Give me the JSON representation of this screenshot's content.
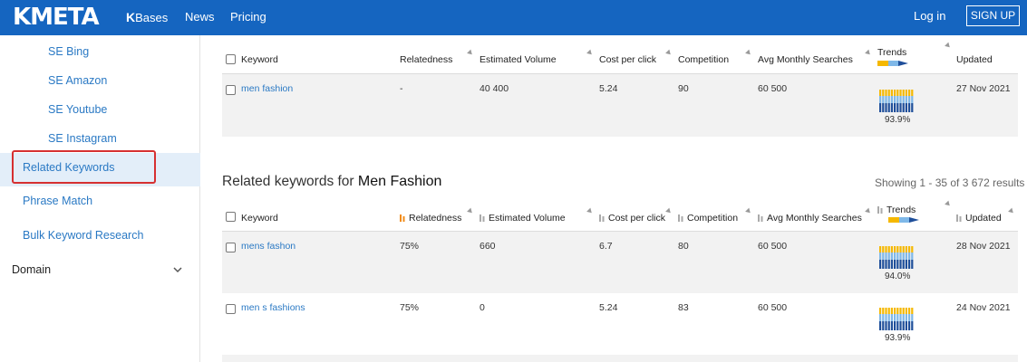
{
  "nav": {
    "logo_text": "KMETA",
    "kbases_k": "K",
    "kbases_label": "Bases",
    "news": "News",
    "pricing": "Pricing",
    "login": "Log in",
    "signup": "SIGN UP",
    "brand_color": "#1565c0"
  },
  "sidebar": {
    "items": [
      {
        "label": "SE Bing"
      },
      {
        "label": "SE Amazon"
      },
      {
        "label": "SE Youtube"
      },
      {
        "label": "SE Instagram"
      },
      {
        "label": "Related Keywords",
        "active": true
      },
      {
        "label": "Phrase Match"
      },
      {
        "label": "Bulk Keyword Research"
      }
    ],
    "domain_label": "Domain",
    "domain_icon": "chevron-down-icon"
  },
  "top_table": {
    "headers": {
      "keyword": "Keyword",
      "relatedness": "Relatedness",
      "volume": "Estimated Volume",
      "cpc": "Cost per click",
      "competition": "Competition",
      "avg": "Avg Monthly Searches",
      "trends": "Trends",
      "updated": "Updated"
    },
    "row": {
      "keyword": "men fashion",
      "relatedness": "-",
      "volume": "40 400",
      "cpc": "5.24",
      "competition": "90",
      "avg": "60 500",
      "trend_pct": "93.9%",
      "updated": "27 Nov 2021"
    }
  },
  "section": {
    "title_prefix": "Related keywords for",
    "title_keyword": "Men Fashion",
    "showing": "Showing 1 - 35 of 3 672 results"
  },
  "related_table": {
    "headers": {
      "keyword": "Keyword",
      "relatedness": "Relatedness",
      "volume": "Estimated Volume",
      "cpc": "Cost per click",
      "competition": "Competition",
      "avg": "Avg Monthly Searches",
      "trends": "Trends",
      "updated": "Updated"
    },
    "rows": [
      {
        "keyword": "mens fashon",
        "relatedness": "75%",
        "volume": "660",
        "cpc": "6.7",
        "competition": "80",
        "avg": "60 500",
        "trend_pct": "94.0%",
        "updated": "28 Nov 2021"
      },
      {
        "keyword": "men s fashions",
        "relatedness": "75%",
        "volume": "0",
        "cpc": "5.24",
        "competition": "83",
        "avg": "60 500",
        "trend_pct": "93.9%",
        "updated": "24 Nov 2021"
      }
    ]
  },
  "colors": {
    "link": "#2a79c4",
    "active_border": "#d63031",
    "row_bg": "#f2f2f2",
    "trend_yellow": "#f5b800",
    "trend_light_blue": "#7fb8e8",
    "trend_dark_blue": "#1f4f9a",
    "sort_active": "#f28c1a"
  }
}
